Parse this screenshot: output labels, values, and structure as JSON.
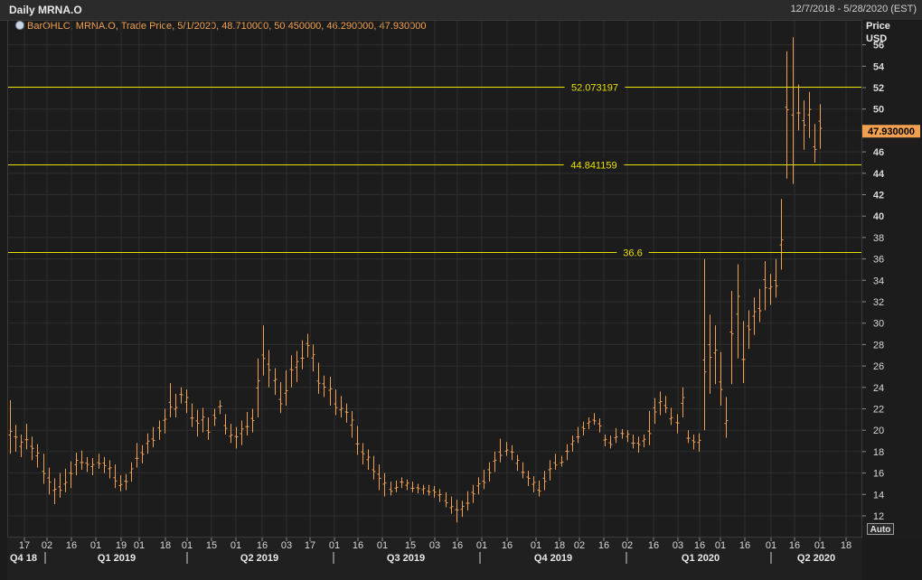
{
  "header": {
    "title": "Daily MRNA.O",
    "date_range": "12/7/2018 - 5/28/2020 (EST)"
  },
  "legend": {
    "icon": "globe-icon",
    "text": "BarOHLC, MRNA.O, Trade Price, 5/1/2020, 48.710000, 50.450000, 46.290000, 47.930000"
  },
  "axis": {
    "price_label": "Price",
    "currency_label": "USD",
    "auto_label": "Auto"
  },
  "colors": {
    "bars": "#f0a050",
    "levels": "#e8e000",
    "last_price_bg": "#f0a050",
    "grid": "#2e2e2e"
  },
  "chart_data": {
    "type": "bar",
    "subtype": "ohlc",
    "title": "Daily MRNA.O",
    "ylabel": "Price USD",
    "ylim": [
      11,
      58
    ],
    "yticks": [
      12,
      14,
      16,
      18,
      20,
      22,
      24,
      26,
      28,
      30,
      32,
      34,
      36,
      38,
      40,
      42,
      44,
      46,
      48,
      50,
      52,
      54,
      56
    ],
    "grid": true,
    "last_price": "47.930000",
    "last_bar": {
      "date": "5/1/2020",
      "open": 48.71,
      "high": 50.45,
      "low": 46.29,
      "close": 47.93
    },
    "levels": [
      {
        "label": "52.073197",
        "value": 52.073197
      },
      {
        "label": "44.841159",
        "value": 44.841159
      },
      {
        "label": "36.6",
        "value": 36.6
      }
    ],
    "x_ticks": [
      "17",
      "02",
      "16",
      "01",
      "19",
      "01",
      "18",
      "01",
      "15",
      "01",
      "16",
      "03",
      "17",
      "01",
      "16",
      "01",
      "15",
      "03",
      "16",
      "01",
      "16",
      "01",
      "18",
      "02",
      "16",
      "02",
      "16",
      "03",
      "16",
      "01",
      "16",
      "01",
      "16",
      "01",
      "18"
    ],
    "quarters": [
      "Q4 18",
      "Q1 2019",
      "Q2 2019",
      "Q3 2019",
      "Q4 2019",
      "Q1 2020",
      "Q2 2020"
    ],
    "series": [
      {
        "name": "MRNA.O",
        "ranges": [
          [
            17.8,
            22.8
          ],
          [
            18.0,
            20.5
          ],
          [
            17.5,
            19.6
          ],
          [
            18.2,
            20.6
          ],
          [
            17.2,
            19.4
          ],
          [
            16.5,
            18.7
          ],
          [
            15.0,
            17.8
          ],
          [
            14.0,
            16.5
          ],
          [
            13.1,
            15.5
          ],
          [
            13.7,
            16.0
          ],
          [
            14.2,
            16.4
          ],
          [
            14.6,
            17.1
          ],
          [
            15.8,
            17.9
          ],
          [
            16.3,
            18.1
          ],
          [
            16.1,
            17.5
          ],
          [
            15.8,
            17.4
          ],
          [
            16.4,
            17.8
          ],
          [
            16.0,
            17.5
          ],
          [
            15.5,
            17.2
          ],
          [
            14.6,
            16.8
          ],
          [
            14.3,
            15.8
          ],
          [
            14.4,
            15.9
          ],
          [
            15.2,
            17.0
          ],
          [
            16.5,
            18.8
          ],
          [
            16.9,
            18.6
          ],
          [
            17.8,
            19.7
          ],
          [
            18.4,
            20.3
          ],
          [
            19.1,
            20.9
          ],
          [
            19.7,
            22.0
          ],
          [
            21.2,
            24.4
          ],
          [
            21.2,
            23.4
          ],
          [
            22.5,
            24.0
          ],
          [
            21.6,
            23.8
          ],
          [
            20.3,
            22.5
          ],
          [
            19.4,
            21.9
          ],
          [
            19.8,
            22.1
          ],
          [
            19.1,
            21.2
          ],
          [
            20.4,
            22.0
          ],
          [
            21.5,
            22.8
          ],
          [
            19.6,
            21.5
          ],
          [
            18.8,
            20.6
          ],
          [
            18.3,
            20.3
          ],
          [
            18.6,
            20.9
          ],
          [
            19.5,
            21.7
          ],
          [
            19.8,
            22.0
          ],
          [
            21.2,
            26.7
          ],
          [
            25.1,
            29.8
          ],
          [
            24.0,
            27.5
          ],
          [
            23.3,
            25.8
          ],
          [
            21.6,
            24.5
          ],
          [
            22.3,
            25.6
          ],
          [
            24.0,
            27.0
          ],
          [
            24.5,
            27.4
          ],
          [
            25.7,
            28.4
          ],
          [
            26.8,
            29.0
          ],
          [
            25.5,
            28.0
          ],
          [
            23.4,
            26.3
          ],
          [
            23.1,
            25.1
          ],
          [
            22.3,
            25.0
          ],
          [
            21.4,
            23.8
          ],
          [
            21.2,
            23.2
          ],
          [
            20.7,
            22.5
          ],
          [
            19.3,
            21.8
          ],
          [
            17.7,
            20.4
          ],
          [
            16.8,
            18.8
          ],
          [
            16.3,
            18.2
          ],
          [
            15.4,
            17.6
          ],
          [
            14.4,
            16.8
          ],
          [
            13.8,
            16.0
          ],
          [
            13.9,
            15.2
          ],
          [
            14.2,
            15.3
          ],
          [
            14.6,
            15.6
          ],
          [
            14.4,
            15.4
          ],
          [
            14.2,
            15.2
          ],
          [
            14.1,
            15.0
          ],
          [
            14.0,
            14.9
          ],
          [
            13.9,
            14.9
          ],
          [
            13.7,
            14.8
          ],
          [
            13.3,
            14.5
          ],
          [
            12.8,
            14.2
          ],
          [
            12.2,
            13.8
          ],
          [
            11.4,
            13.5
          ],
          [
            11.9,
            13.4
          ],
          [
            12.5,
            14.3
          ],
          [
            13.2,
            14.9
          ],
          [
            14.0,
            15.6
          ],
          [
            14.5,
            16.3
          ],
          [
            15.2,
            17.0
          ],
          [
            16.1,
            18.0
          ],
          [
            17.0,
            19.2
          ],
          [
            17.6,
            18.9
          ],
          [
            17.2,
            18.6
          ],
          [
            16.2,
            17.7
          ],
          [
            15.5,
            17.0
          ],
          [
            14.8,
            16.2
          ],
          [
            14.2,
            15.7
          ],
          [
            13.8,
            15.3
          ],
          [
            14.4,
            16.2
          ],
          [
            15.3,
            17.2
          ],
          [
            16.3,
            17.8
          ],
          [
            16.6,
            17.6
          ],
          [
            17.2,
            18.7
          ],
          [
            18.0,
            19.5
          ],
          [
            18.8,
            20.3
          ],
          [
            19.5,
            20.8
          ],
          [
            20.1,
            21.2
          ],
          [
            20.5,
            21.6
          ],
          [
            19.8,
            21.1
          ],
          [
            18.5,
            19.6
          ],
          [
            18.3,
            19.5
          ],
          [
            18.8,
            20.2
          ],
          [
            19.2,
            20.1
          ],
          [
            18.9,
            20.0
          ],
          [
            18.3,
            19.6
          ],
          [
            17.9,
            19.4
          ],
          [
            18.4,
            19.6
          ],
          [
            18.6,
            21.8
          ],
          [
            20.6,
            23.0
          ],
          [
            21.4,
            23.6
          ],
          [
            21.6,
            23.2
          ],
          [
            20.5,
            22.1
          ],
          [
            19.7,
            21.5
          ],
          [
            21.2,
            24.0
          ],
          [
            18.8,
            20.0
          ],
          [
            18.2,
            19.6
          ],
          [
            18.0,
            19.7
          ],
          [
            20.0,
            36.0
          ],
          [
            23.4,
            30.8
          ],
          [
            24.3,
            29.8
          ],
          [
            22.3,
            27.3
          ],
          [
            19.3,
            23.1
          ],
          [
            24.3,
            33.0
          ],
          [
            26.7,
            35.5
          ],
          [
            24.4,
            30.2
          ],
          [
            27.6,
            31.2
          ],
          [
            28.9,
            32.4
          ],
          [
            30.1,
            33.2
          ],
          [
            31.2,
            35.8
          ],
          [
            31.7,
            34.6
          ],
          [
            32.4,
            36.0
          ],
          [
            35.0,
            41.6
          ],
          [
            43.5,
            55.4
          ],
          [
            43.0,
            56.7
          ],
          [
            48.0,
            52.3
          ],
          [
            46.2,
            50.8
          ],
          [
            47.3,
            51.6
          ],
          [
            45.0,
            48.6
          ],
          [
            46.29,
            50.45
          ]
        ]
      }
    ]
  }
}
